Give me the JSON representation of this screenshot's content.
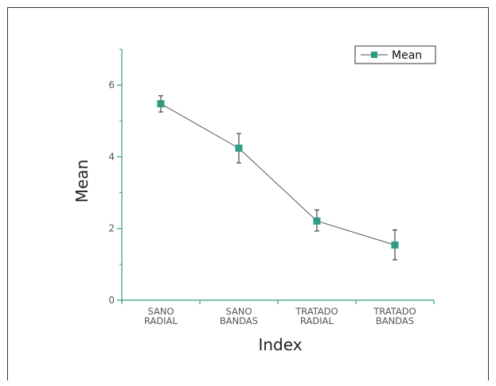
{
  "chart_data": {
    "type": "line",
    "categories": [
      [
        "SANO",
        "RADIAL"
      ],
      [
        "SANO",
        "BANDAS"
      ],
      [
        "TRATADO",
        "RADIAL"
      ],
      [
        "TRATADO",
        "BANDAS"
      ]
    ],
    "series": [
      {
        "name": "Mean",
        "values": [
          5.48,
          4.24,
          2.21,
          1.54
        ],
        "error_low": [
          5.25,
          3.83,
          1.93,
          1.13
        ],
        "error_high": [
          5.7,
          4.65,
          2.52,
          1.96
        ]
      }
    ],
    "xlabel": "Index",
    "ylabel": "Mean",
    "ylim": [
      0,
      7
    ],
    "yticks": [
      0,
      2,
      4,
      6
    ],
    "grid": false,
    "legend_position": "top-right",
    "colors": {
      "marker": "#2e9c85",
      "line": "#555555",
      "axis": "#2e9c85",
      "errorbar": "#222222"
    }
  }
}
